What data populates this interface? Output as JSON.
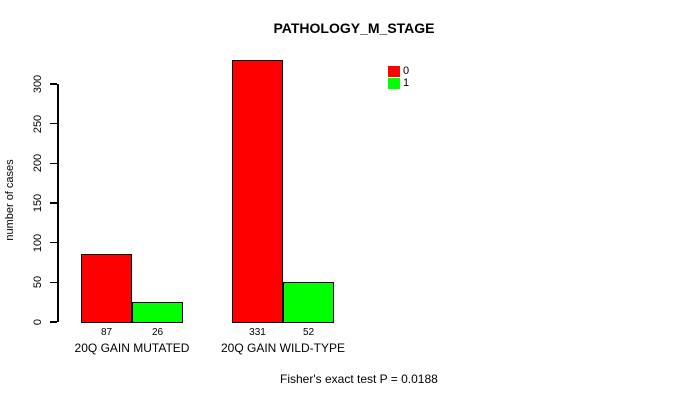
{
  "chart_data": {
    "type": "bar",
    "title": "PATHOLOGY_M_STAGE",
    "ylabel": "number of cases",
    "xlabel": "",
    "categories": [
      "20Q GAIN MUTATED",
      "20Q GAIN WILD-TYPE"
    ],
    "series": [
      {
        "name": "0",
        "color": "#ff0000",
        "values": [
          87,
          331
        ]
      },
      {
        "name": "1",
        "color": "#00ff00",
        "values": [
          26,
          52
        ]
      }
    ],
    "bar_value_labels": [
      [
        "87",
        "26"
      ],
      [
        "331",
        "52"
      ]
    ],
    "yticks": [
      0,
      50,
      100,
      150,
      200,
      250,
      300
    ],
    "ylim": [
      0,
      300
    ],
    "grid": "off",
    "legend_position": "top-right",
    "annotation": "Fisher's exact test P = 0.0188"
  },
  "colors": {
    "series0": "#ff0000",
    "series1": "#00ff00",
    "axis": "#000000",
    "background": "#ffffff"
  }
}
